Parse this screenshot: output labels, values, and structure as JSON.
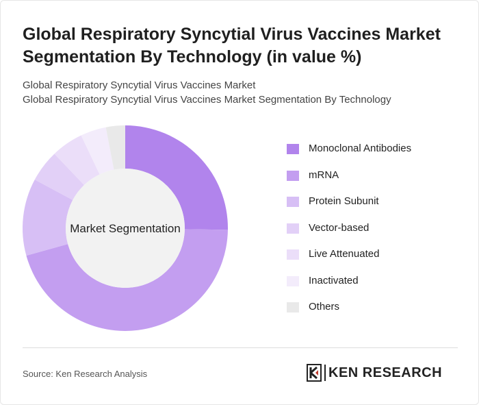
{
  "title": "Global Respiratory Syncytial Virus Vaccines Market Segmentation By Technology (in value %)",
  "subtitle_lines": [
    "Global Respiratory Syncytial Virus Vaccines Market",
    "Global Respiratory Syncytial Virus Vaccines Market Segmentation By Technology"
  ],
  "source": "Source: Ken Research Analysis",
  "logo_text": "KEN RESEARCH",
  "chart_data": {
    "type": "pie",
    "center_label": "Market Segmentation",
    "legend_position": "right",
    "categories": [
      "Monoclonal Antibodies",
      "mRNA",
      "Protein Subunit",
      "Vector-based",
      "Live Attenuated",
      "Inactivated",
      "Others"
    ],
    "values": [
      25,
      45,
      12,
      5,
      5,
      4,
      3
    ],
    "colors": [
      "#b184ec",
      "#c39ef0",
      "#d7bff5",
      "#e2d0f7",
      "#ebdef9",
      "#f3ecfb",
      "#e9e9e9"
    ],
    "center_color": "#f2f2f2"
  }
}
